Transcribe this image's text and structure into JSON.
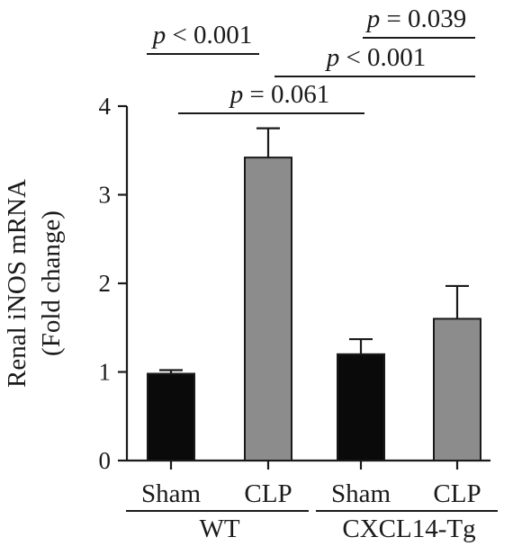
{
  "chart_data": {
    "type": "bar",
    "ylabel": [
      "Renal iNOS mRNA",
      "(Fold change)"
    ],
    "ylim": [
      0,
      4
    ],
    "yticks": [
      0,
      1,
      2,
      3,
      4
    ],
    "groups": [
      {
        "label": "WT",
        "categories": [
          0,
          1
        ]
      },
      {
        "label": "CXCL14-Tg",
        "categories": [
          2,
          3
        ]
      }
    ],
    "categories": [
      "Sham",
      "CLP",
      "Sham",
      "CLP"
    ],
    "values": [
      0.98,
      3.42,
      1.2,
      1.6
    ],
    "errors": [
      0.04,
      0.33,
      0.17,
      0.37
    ],
    "colors": [
      "#0a0a0a",
      "#8c8c8c",
      "#0a0a0a",
      "#8c8c8c"
    ],
    "comparisons": [
      {
        "between": [
          0,
          1
        ],
        "p_symbol": "p",
        "p_op": " < ",
        "p_value": "0.001"
      },
      {
        "between": [
          0,
          2
        ],
        "p_symbol": "p",
        "p_op": " = ",
        "p_value": "0.061"
      },
      {
        "between": [
          1,
          3
        ],
        "p_symbol": "p",
        "p_op": " < ",
        "p_value": "0.001"
      },
      {
        "between": [
          2,
          3
        ],
        "p_symbol": "p",
        "p_op": " = ",
        "p_value": "0.039"
      }
    ]
  }
}
